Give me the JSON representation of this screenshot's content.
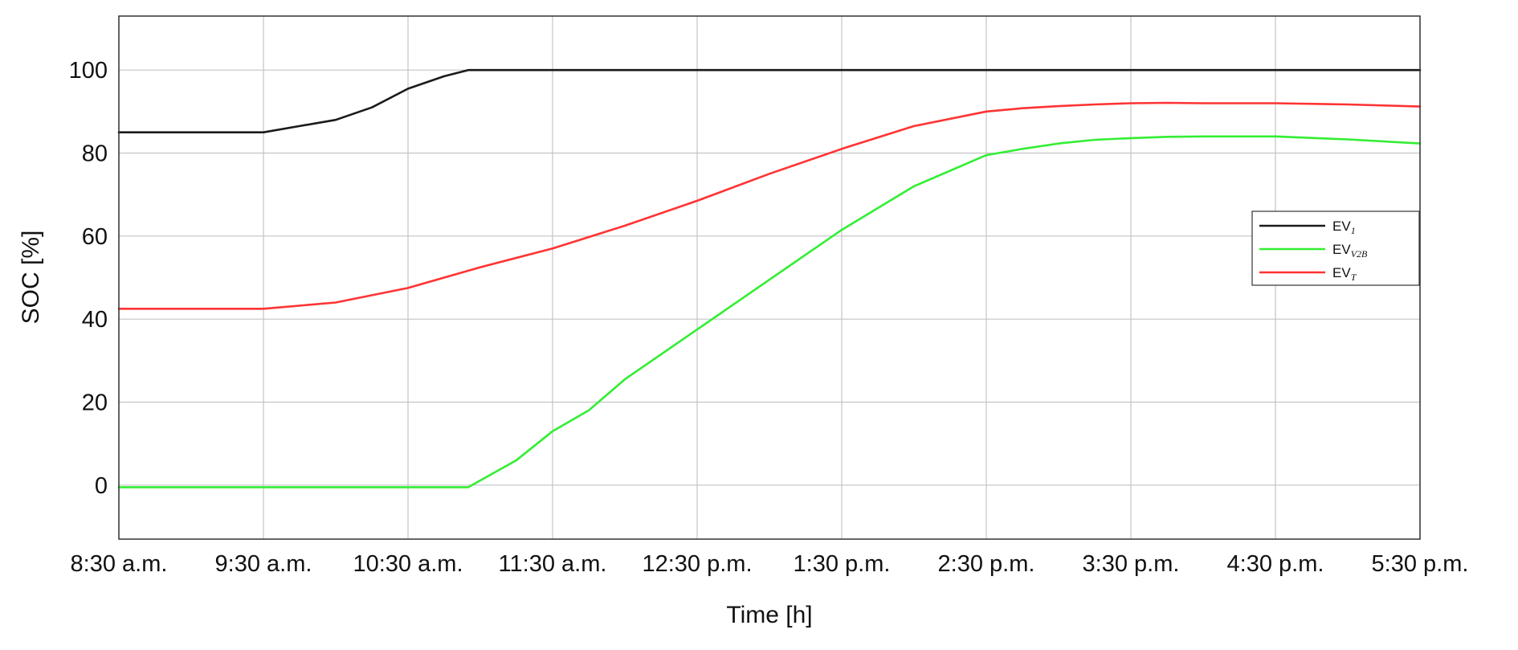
{
  "chart_data": {
    "type": "line",
    "title": "",
    "xlabel": "Time [h]",
    "ylabel": "SOC [%]",
    "x_ticks": [
      "8:30 a.m.",
      "9:30 a.m.",
      "10:30 a.m.",
      "11:30 a.m.",
      "12:30 p.m.",
      "1:30 p.m.",
      "2:30 p.m.",
      "3:30 p.m.",
      "4:30 p.m.",
      "5:30 p.m."
    ],
    "xlim": [
      "8:30 a.m.",
      "5:30 p.m."
    ],
    "y_ticks": [
      0,
      20,
      40,
      60,
      80,
      100
    ],
    "ylim": [
      -13,
      113
    ],
    "grid": true,
    "legend_position": "right",
    "series": [
      {
        "name": "EV",
        "subscript": "1",
        "subscript_italic": false,
        "color": "#1a1a1a",
        "x": [
          "8:30 a.m.",
          "9:00 a.m.",
          "9:30 a.m.",
          "9:45 a.m.",
          "10:00 a.m.",
          "10:15 a.m.",
          "10:30 a.m.",
          "10:45 a.m.",
          "10:55 a.m.",
          "11:30 a.m.",
          "1:30 p.m.",
          "3:30 p.m.",
          "5:30 p.m."
        ],
        "values": [
          85,
          85,
          85,
          86.5,
          88,
          91,
          95.5,
          98.5,
          100,
          100,
          100,
          100,
          100
        ]
      },
      {
        "name": "EV",
        "subscript": "V2B",
        "subscript_italic": true,
        "color": "#33ee33",
        "x": [
          "8:30 a.m.",
          "9:30 a.m.",
          "10:30 a.m.",
          "10:55 a.m.",
          "11:15 a.m.",
          "11:30 a.m.",
          "11:45 a.m.",
          "12:00 p.m.",
          "12:15 p.m.",
          "12:30 p.m.",
          "1:00 p.m.",
          "1:30 p.m.",
          "2:00 p.m.",
          "2:30 p.m.",
          "2:45 p.m.",
          "3:00 p.m.",
          "3:15 p.m.",
          "3:30 p.m.",
          "3:45 p.m.",
          "4:00 p.m.",
          "4:15 p.m.",
          "4:30 p.m.",
          "5:00 p.m.",
          "5:30 p.m."
        ],
        "values": [
          -0.5,
          -0.5,
          -0.5,
          -0.5,
          6,
          13,
          18,
          25.5,
          31.5,
          37.5,
          49.5,
          61.5,
          72,
          79.5,
          81,
          82.3,
          83.2,
          83.6,
          83.9,
          84,
          84,
          84,
          83.3,
          82.3
        ]
      },
      {
        "name": "EV",
        "subscript": "T",
        "subscript_italic": true,
        "color": "#ff3333",
        "x": [
          "8:30 a.m.",
          "9:00 a.m.",
          "9:30 a.m.",
          "10:00 a.m.",
          "10:30 a.m.",
          "11:00 a.m.",
          "11:30 a.m.",
          "12:00 p.m.",
          "12:30 p.m.",
          "1:00 p.m.",
          "1:30 p.m.",
          "2:00 p.m.",
          "2:30 p.m.",
          "2:45 p.m.",
          "3:00 p.m.",
          "3:15 p.m.",
          "3:30 p.m.",
          "3:45 p.m.",
          "4:00 p.m.",
          "4:15 p.m.",
          "4:30 p.m.",
          "5:00 p.m.",
          "5:30 p.m."
        ],
        "values": [
          42.5,
          42.5,
          42.5,
          44,
          47.5,
          52.5,
          57,
          62.5,
          68.5,
          75,
          81,
          86.5,
          90,
          90.8,
          91.3,
          91.7,
          92,
          92.1,
          92,
          92,
          92,
          91.7,
          91.2
        ]
      }
    ]
  }
}
